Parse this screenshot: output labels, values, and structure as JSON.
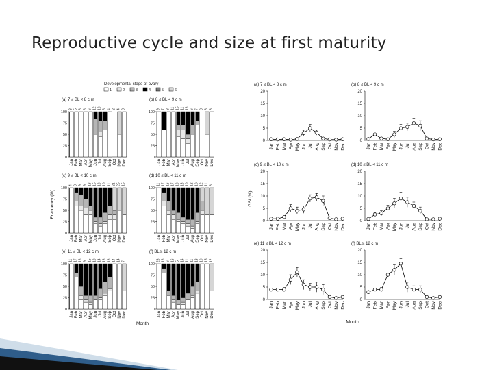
{
  "slide": {
    "title": "Reproductive cycle and size at first maturity",
    "accent_color": "#2f5d8a"
  },
  "chart_data": [
    {
      "type": "bar",
      "stacked": true,
      "percent": true,
      "legend_title": "Developmental stage of ovary",
      "legend": [
        "1",
        "2",
        "3",
        "4",
        "5",
        "6"
      ],
      "stage_colors": [
        "#ffffff",
        "#e8e8e8",
        "#b5b5b5",
        "#000000",
        "#7a7a7a",
        "#d6d6d6"
      ],
      "categories": [
        "Jan",
        "Feb",
        "Mar",
        "Apr",
        "May",
        "Jun",
        "Jul",
        "Aug",
        "Sep",
        "Oct",
        "Nov",
        "Dec"
      ],
      "ylabel": "Frequency (%)",
      "xlabel": "Month",
      "ylim": [
        0,
        100
      ],
      "yticks": [
        0,
        25,
        50,
        75,
        100
      ],
      "panels": [
        {
          "title": "(a) 7 ≤ BL < 8 c m",
          "n": [
            "3",
            "5",
            "8",
            "6",
            "6",
            "12",
            "18",
            "6",
            "4",
            "2",
            "4",
            "3"
          ],
          "stages": [
            [
              100,
              0,
              0,
              0,
              0,
              0
            ],
            [
              100,
              0,
              0,
              0,
              0,
              0
            ],
            [
              100,
              0,
              0,
              0,
              0,
              0
            ],
            [
              100,
              0,
              0,
              0,
              0,
              0
            ],
            [
              100,
              0,
              0,
              0,
              0,
              0
            ],
            [
              50,
              0,
              35,
              15,
              0,
              0
            ],
            [
              45,
              10,
              25,
              20,
              0,
              0
            ],
            [
              60,
              0,
              20,
              20,
              0,
              0
            ],
            [
              100,
              0,
              0,
              0,
              0,
              0
            ],
            [
              0,
              0,
              0,
              0,
              0,
              0
            ],
            [
              50,
              0,
              0,
              0,
              0,
              50
            ],
            [
              100,
              0,
              0,
              0,
              0,
              0
            ]
          ]
        },
        {
          "title": "(b) 8 ≤ BL < 9 c m",
          "n": [
            "9",
            "7",
            "8",
            "11",
            "15",
            "11",
            "16",
            "6",
            "7",
            "3",
            "8",
            "3"
          ],
          "stages": [
            [
              100,
              0,
              0,
              0,
              0,
              0
            ],
            [
              60,
              0,
              0,
              40,
              0,
              0
            ],
            [
              100,
              0,
              0,
              0,
              0,
              0
            ],
            [
              100,
              0,
              0,
              0,
              0,
              0
            ],
            [
              45,
              15,
              10,
              30,
              0,
              0
            ],
            [
              40,
              20,
              10,
              30,
              0,
              0
            ],
            [
              30,
              10,
              10,
              50,
              0,
              0
            ],
            [
              50,
              0,
              20,
              30,
              0,
              0
            ],
            [
              70,
              0,
              10,
              20,
              0,
              0
            ],
            [
              0,
              0,
              0,
              0,
              0,
              0
            ],
            [
              50,
              0,
              0,
              0,
              0,
              50
            ],
            [
              100,
              0,
              0,
              0,
              0,
              0
            ]
          ]
        },
        {
          "title": "(c) 9 ≤ BL < 10 c m",
          "n": [
            "4",
            "8",
            "9",
            "9",
            "18",
            "15",
            "13",
            "10",
            "11",
            "21",
            "25",
            "15"
          ],
          "stages": [
            [
              100,
              0,
              0,
              0,
              0,
              0
            ],
            [
              60,
              10,
              20,
              10,
              0,
              0
            ],
            [
              50,
              10,
              25,
              15,
              0,
              0
            ],
            [
              40,
              15,
              20,
              25,
              0,
              0
            ],
            [
              40,
              10,
              10,
              40,
              0,
              0
            ],
            [
              20,
              5,
              10,
              65,
              0,
              0
            ],
            [
              15,
              5,
              15,
              65,
              0,
              0
            ],
            [
              20,
              5,
              20,
              55,
              0,
              0
            ],
            [
              30,
              10,
              20,
              40,
              0,
              0
            ],
            [
              30,
              10,
              10,
              0,
              0,
              50
            ],
            [
              50,
              0,
              0,
              0,
              0,
              50
            ],
            [
              40,
              0,
              0,
              0,
              0,
              60
            ]
          ]
        },
        {
          "title": "(d) 10 ≤ BL < 11 c m",
          "n": [
            "11",
            "17",
            "16",
            "17",
            "18",
            "13",
            "10",
            "12",
            "10",
            "12",
            "11",
            "8"
          ],
          "stages": [
            [
              100,
              0,
              0,
              0,
              0,
              0
            ],
            [
              60,
              10,
              20,
              10,
              0,
              0
            ],
            [
              40,
              10,
              20,
              30,
              0,
              0
            ],
            [
              30,
              10,
              10,
              50,
              0,
              0
            ],
            [
              25,
              5,
              15,
              55,
              0,
              0
            ],
            [
              20,
              5,
              10,
              65,
              0,
              0
            ],
            [
              15,
              5,
              10,
              70,
              0,
              0
            ],
            [
              10,
              5,
              15,
              70,
              0,
              0
            ],
            [
              20,
              5,
              20,
              55,
              0,
              0
            ],
            [
              40,
              10,
              20,
              0,
              0,
              30
            ],
            [
              40,
              0,
              0,
              0,
              0,
              60
            ],
            [
              40,
              0,
              0,
              0,
              0,
              60
            ]
          ]
        },
        {
          "title": "(e) 11 ≤ BL < 12 c m",
          "n": [
            "11",
            "17",
            "16",
            "9",
            "15",
            "13",
            "14",
            "18",
            "13",
            "14",
            "14",
            "7"
          ],
          "stages": [
            [
              100,
              0,
              0,
              0,
              0,
              0
            ],
            [
              70,
              0,
              10,
              20,
              0,
              0
            ],
            [
              20,
              10,
              20,
              50,
              0,
              0
            ],
            [
              15,
              5,
              10,
              70,
              0,
              0
            ],
            [
              10,
              5,
              15,
              70,
              0,
              0
            ],
            [
              20,
              0,
              10,
              70,
              0,
              0
            ],
            [
              20,
              5,
              20,
              55,
              0,
              0
            ],
            [
              30,
              5,
              25,
              40,
              0,
              0
            ],
            [
              40,
              5,
              25,
              30,
              0,
              0
            ],
            [
              100,
              0,
              0,
              0,
              0,
              0
            ],
            [
              100,
              0,
              0,
              0,
              0,
              0
            ],
            [
              40,
              0,
              0,
              0,
              0,
              60
            ]
          ]
        },
        {
          "title": "(f) BL ≥ 12 c m",
          "n": [
            "23",
            "16",
            "6",
            "16",
            "5",
            "14",
            "11",
            "11",
            "13",
            "10",
            "15",
            "12"
          ],
          "stages": [
            [
              100,
              0,
              0,
              0,
              0,
              0
            ],
            [
              80,
              0,
              10,
              10,
              0,
              0
            ],
            [
              30,
              0,
              10,
              60,
              0,
              0
            ],
            [
              15,
              5,
              10,
              70,
              0,
              0
            ],
            [
              10,
              0,
              10,
              80,
              0,
              0
            ],
            [
              10,
              5,
              10,
              75,
              0,
              0
            ],
            [
              20,
              0,
              15,
              65,
              0,
              0
            ],
            [
              25,
              5,
              20,
              50,
              0,
              0
            ],
            [
              35,
              5,
              20,
              40,
              0,
              0
            ],
            [
              100,
              0,
              0,
              0,
              0,
              0
            ],
            [
              100,
              0,
              0,
              0,
              0,
              0
            ],
            [
              40,
              0,
              0,
              0,
              0,
              60
            ]
          ]
        }
      ]
    },
    {
      "type": "line",
      "ylabel": "GSI (%)",
      "xlabel": "Month",
      "x": [
        "Jan",
        "Feb",
        "Mar",
        "Apr",
        "May",
        "Jun",
        "Jul",
        "Aug",
        "Sep",
        "Oct",
        "Nov",
        "Dec"
      ],
      "ylim": [
        0,
        20
      ],
      "yticks": [
        0,
        5,
        10,
        15,
        20
      ],
      "panels": [
        {
          "title": "(a) 7 ≤ BL < 8 c m",
          "values": [
            0.5,
            0.4,
            0.5,
            0.3,
            0.6,
            3,
            5,
            3.2,
            0.8,
            0.4,
            0.3,
            0.5
          ],
          "errors": [
            0.3,
            0.2,
            0.3,
            0.2,
            0.4,
            1.2,
            1.5,
            1.0,
            0.4,
            0.2,
            0.2,
            0.3
          ]
        },
        {
          "title": "(b) 8 ≤ BL < 9 c m",
          "values": [
            0.6,
            2.5,
            0.8,
            0.5,
            2.5,
            5,
            5.5,
            7,
            6,
            0.8,
            0.4,
            0.5
          ],
          "errors": [
            0.3,
            1.8,
            0.4,
            0.3,
            1.2,
            1.5,
            1.5,
            2.0,
            2.0,
            0.4,
            0.2,
            0.3
          ]
        },
        {
          "title": "(c) 9 ≤ BL < 10 c m",
          "values": [
            0.8,
            0.8,
            1.5,
            5,
            4,
            4.5,
            9,
            9.5,
            8,
            1,
            0.6,
            0.8
          ],
          "errors": [
            0.3,
            0.3,
            0.6,
            1.5,
            1.5,
            1.5,
            1.5,
            1.5,
            2.0,
            0.4,
            0.2,
            0.3
          ]
        },
        {
          "title": "(d) 10 ≤ BL < 11 c m",
          "values": [
            0.7,
            2.5,
            3,
            5,
            7,
            9,
            7.5,
            6,
            4,
            0.6,
            0.6,
            0.8
          ],
          "errors": [
            0.3,
            0.8,
            1.0,
            1.2,
            2.0,
            2.5,
            2.0,
            1.5,
            1.5,
            0.3,
            0.2,
            0.3
          ]
        },
        {
          "title": "(e) 11 ≤ BL < 12 c m",
          "values": [
            4,
            4,
            4,
            8,
            11,
            6,
            5,
            5,
            4,
            1,
            0.6,
            1
          ],
          "errors": [
            0.6,
            0.6,
            0.8,
            2.0,
            2.0,
            2.0,
            1.5,
            2.0,
            2.0,
            0.4,
            0.3,
            0.4
          ]
        },
        {
          "title": "(f) BL ≥ 12 c m",
          "values": [
            3,
            4,
            4,
            10,
            12,
            14.5,
            5,
            4,
            4,
            1,
            0.6,
            1
          ],
          "errors": [
            0.5,
            0.6,
            0.8,
            1.5,
            2.0,
            2.0,
            2.0,
            1.5,
            1.5,
            0.4,
            0.3,
            0.4
          ]
        }
      ]
    }
  ]
}
